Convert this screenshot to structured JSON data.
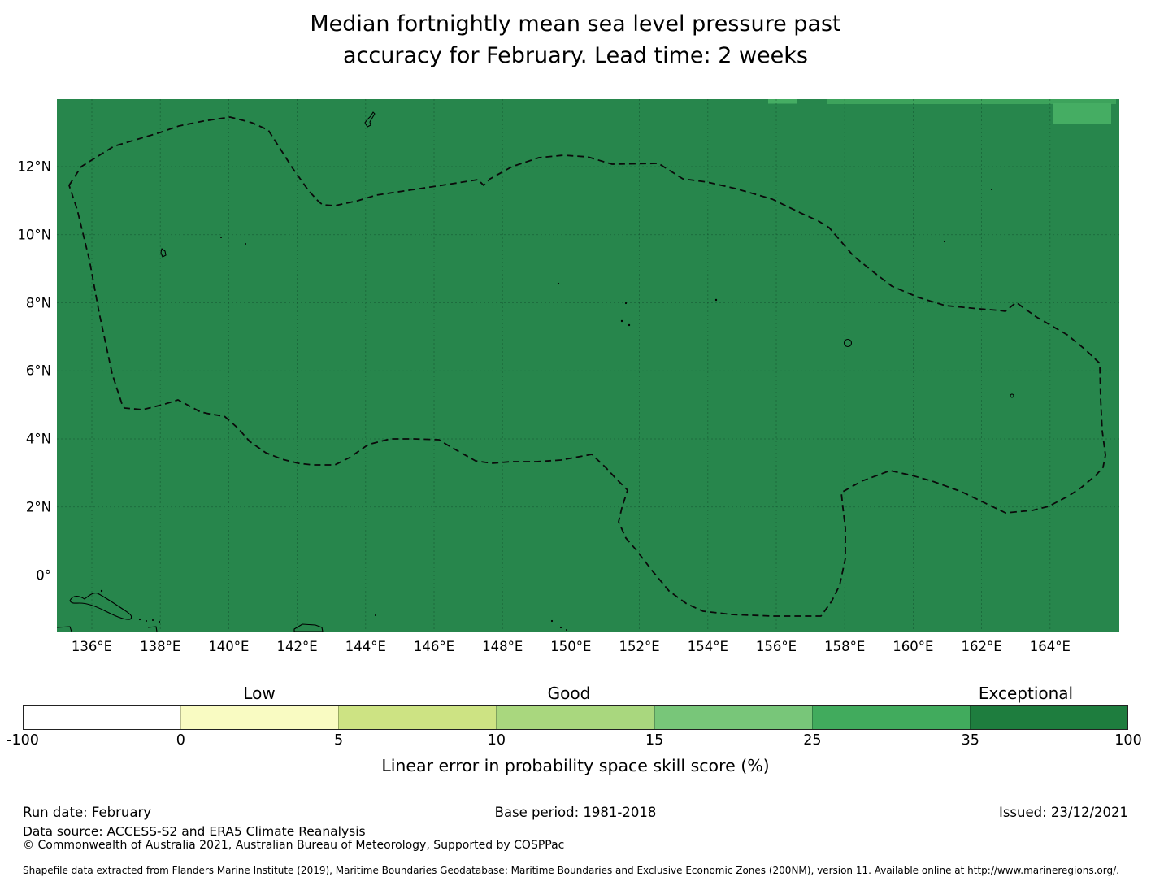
{
  "title": {
    "line1": "Median fortnightly mean sea level pressure past",
    "line2": "accuracy for February. Lead time: 2 weeks"
  },
  "colors": {
    "map_fill": "#27864c",
    "patch_25_35": "#45ad63",
    "patch_strip": "#3da35c",
    "gridline": "#0b3d24",
    "boundary": "#0a0a0a"
  },
  "map": {
    "x_ticks": [
      "136°E",
      "138°E",
      "140°E",
      "142°E",
      "144°E",
      "146°E",
      "148°E",
      "150°E",
      "152°E",
      "154°E",
      "156°E",
      "158°E",
      "160°E",
      "162°E",
      "164°E"
    ],
    "y_ticks": [
      "12°N",
      "10°N",
      "8°N",
      "6°N",
      "4°N",
      "2°N",
      "0°"
    ]
  },
  "colorbar": {
    "categories": [
      "Low",
      "Good",
      "Exceptional"
    ],
    "ticks": [
      "-100",
      "0",
      "5",
      "10",
      "15",
      "25",
      "35",
      "100"
    ],
    "segment_colors": [
      "#ffffff",
      "#f9fbc2",
      "#cde383",
      "#a9d77e",
      "#78c679",
      "#41ab5d",
      "#1e7d3e"
    ],
    "axis_label": "Linear error in probability space skill score (%)"
  },
  "footer": {
    "run_date": "Run date: February",
    "base_period": "Base period: 1981-2018",
    "issued": "Issued: 23/12/2021",
    "data_source": "Data source: ACCESS-S2 and ERA5 Climate Reanalysis",
    "copyright": "© Commonwealth of Australia 2021, Australian Bureau of Meteorology, Supported by COSPPac",
    "shapefile": "Shapefile data extracted from Flanders Marine Institute (2019), Maritime Boundaries Geodatabase: Maritime Boundaries and Exclusive Economic Zones (200NM), version 11. Available online at http://www.marineregions.org/."
  },
  "chart_data": {
    "type": "heatmap",
    "title": "Median fortnightly mean sea level pressure past accuracy for February. Lead time: 2 weeks",
    "x_axis": {
      "tick_labels": [
        "136°E",
        "138°E",
        "140°E",
        "142°E",
        "144°E",
        "146°E",
        "148°E",
        "150°E",
        "152°E",
        "154°E",
        "156°E",
        "158°E",
        "160°E",
        "162°E",
        "164°E"
      ],
      "extent_deg_east": [
        135,
        166
      ]
    },
    "y_axis": {
      "tick_labels": [
        "12°N",
        "10°N",
        "8°N",
        "6°N",
        "4°N",
        "2°N",
        "0°"
      ],
      "extent_deg_north": [
        -1.6,
        14
      ]
    },
    "colorbar": {
      "label": "Linear error in probability space skill score (%)",
      "bin_edges": [
        -100,
        0,
        5,
        10,
        15,
        25,
        35,
        100
      ],
      "bin_colors": [
        "#ffffff",
        "#f9fbc2",
        "#cde383",
        "#a9d77e",
        "#78c679",
        "#41ab5d",
        "#1e7d3e"
      ],
      "category_labels": [
        {
          "text": "Low",
          "above_bin": "0-5"
        },
        {
          "text": "Good",
          "above_bin": "10-15"
        },
        {
          "text": "Exceptional",
          "above_bin": "35-100"
        }
      ],
      "orientation": "horizontal-bottom"
    },
    "values": [
      {
        "region": "entire mapped domain (≈135-166°E, ≈1.6°S-14°N)",
        "skill_score_bin": "35-100",
        "category": "Exceptional"
      },
      {
        "region": "top-edge cells ≈155.8-156.6°E at ≈14°N",
        "skill_score_bin": "25-35"
      },
      {
        "region": "top-edge strip ≈157.5-166°E at ≈13.9-14°N",
        "skill_score_bin": "25-35"
      },
      {
        "region": "block ≈164.1-165.8°E, ≈13.3-13.9°N",
        "skill_score_bin": "25-35"
      }
    ],
    "overlays": [
      "Dashed Exclusive Economic Zone boundary (Federated States of Micronesia)",
      "Coastlines: Guam, Yap, Chuuk atolls, Pohnpei, Kosrae, Papua New Guinea islands (bottom left)"
    ],
    "gridlines": true,
    "legend_position": "bottom"
  }
}
